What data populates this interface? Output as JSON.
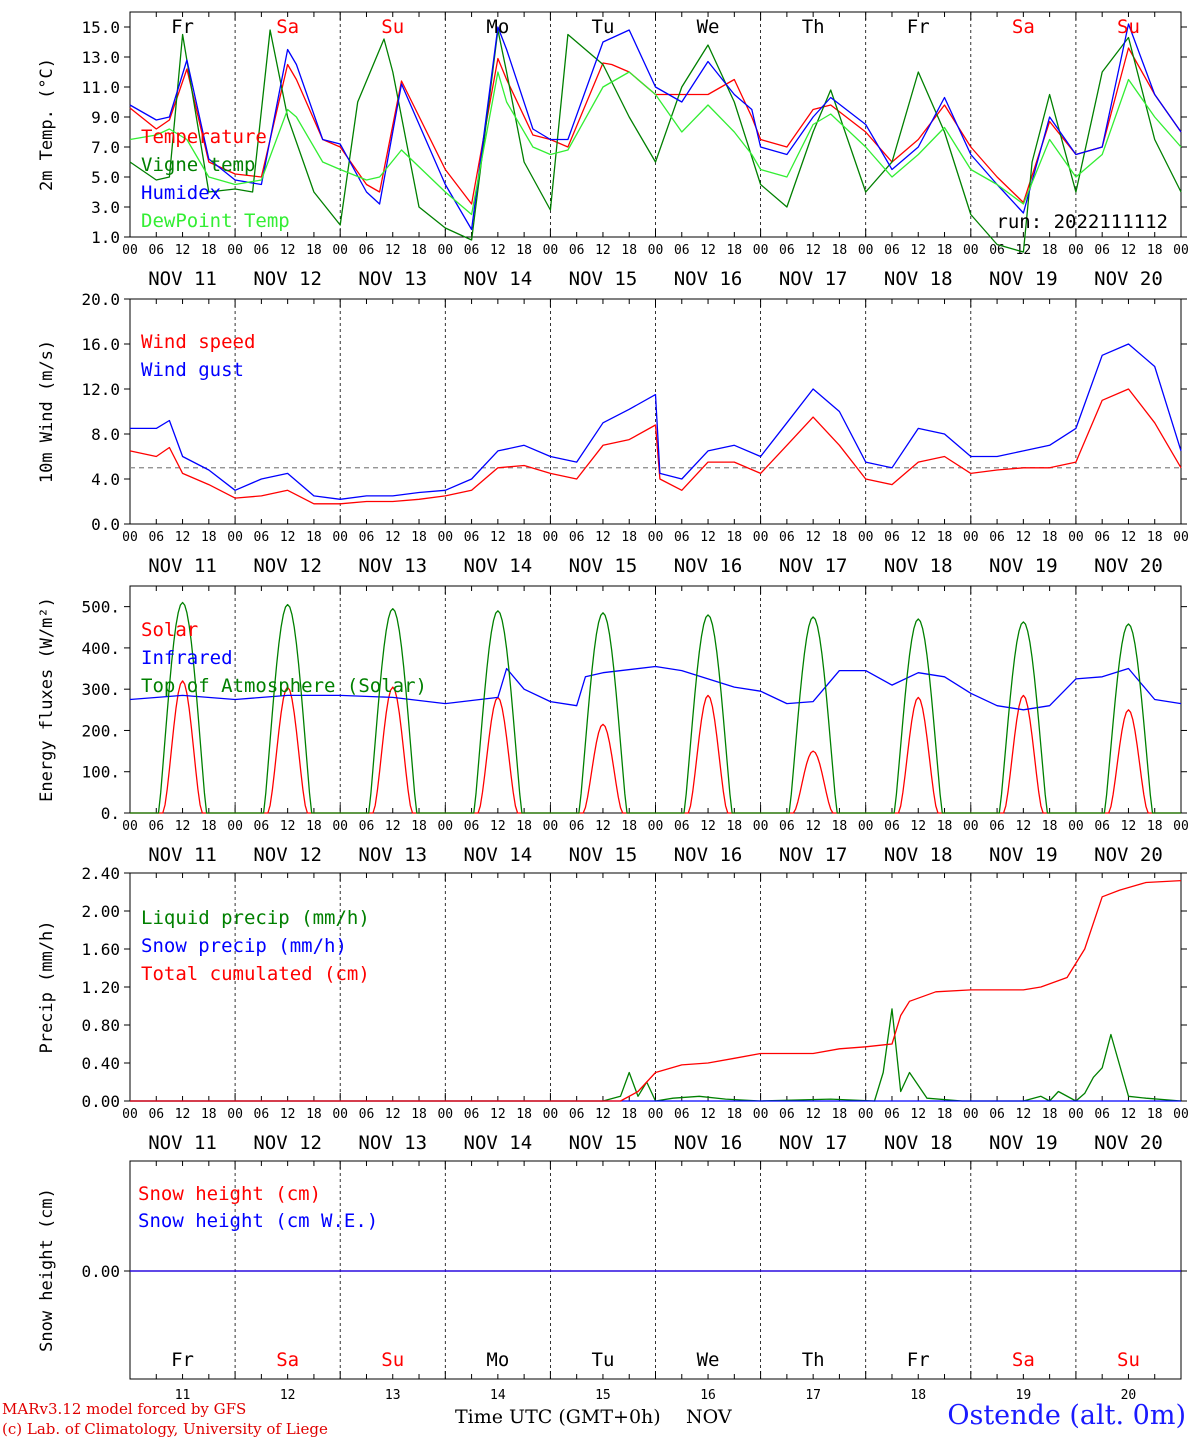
{
  "colors": {
    "temperature": "#ff0000",
    "vigne": "#008000",
    "humidex": "#0000ff",
    "dewpoint": "#33ee33",
    "wind_speed": "#ff0000",
    "wind_gust": "#0000ff",
    "solar": "#ff0000",
    "infrared": "#0000ff",
    "toa": "#008000",
    "liquid": "#008000",
    "snow_precip": "#0000ff",
    "cumulated": "#ff0000",
    "snow_h": "#ff0000",
    "snow_we": "#0000ff",
    "weekday": "#000000",
    "weekend": "#ff0000"
  },
  "days": [
    {
      "abbr": "Fr",
      "date": "NOV 11",
      "num": "11",
      "weekend": false
    },
    {
      "abbr": "Sa",
      "date": "NOV 12",
      "num": "12",
      "weekend": true
    },
    {
      "abbr": "Su",
      "date": "NOV 13",
      "num": "13",
      "weekend": true
    },
    {
      "abbr": "Mo",
      "date": "NOV 14",
      "num": "14",
      "weekend": false
    },
    {
      "abbr": "Tu",
      "date": "NOV 15",
      "num": "15",
      "weekend": false
    },
    {
      "abbr": "We",
      "date": "NOV 16",
      "num": "16",
      "weekend": false
    },
    {
      "abbr": "Th",
      "date": "NOV 17",
      "num": "17",
      "weekend": false
    },
    {
      "abbr": "Fr",
      "date": "NOV 18",
      "num": "18",
      "weekend": false
    },
    {
      "abbr": "Sa",
      "date": "NOV 19",
      "num": "19",
      "weekend": true
    },
    {
      "abbr": "Su",
      "date": "NOV 20",
      "num": "20",
      "weekend": true
    }
  ],
  "hour_ticks": [
    "00",
    "06",
    "12",
    "18"
  ],
  "hour_tick_last": "00",
  "run_label": "run: 2022111112",
  "footer": {
    "credit_line1": "MARv3.12 model forced by GFS",
    "credit_line2": "(c) Lab. of Climatology, University of Liege",
    "x_title": "Time UTC (GMT+0h)",
    "x_month": "NOV",
    "station": "Ostende (alt. 0m)"
  },
  "chart_data": [
    {
      "type": "line",
      "ylabel": "2m Temp. (°C)",
      "ylim": [
        1,
        16
      ],
      "yticks": [
        "1.0",
        "3.0",
        "5.0",
        "7.0",
        "9.0",
        "11.0",
        "13.0",
        "15.0"
      ],
      "yticks_values": [
        1,
        3,
        5,
        7,
        9,
        11,
        13,
        15
      ],
      "x_unit": "hours since NOV 11 00 UTC",
      "series": [
        {
          "name": "Temperature",
          "color_key": "temperature",
          "x": [
            0,
            6,
            9,
            13,
            18,
            24,
            30,
            36,
            38,
            44,
            48,
            54,
            57,
            62,
            72,
            78,
            84,
            86,
            92,
            96,
            100,
            108,
            110,
            114,
            120,
            132,
            138,
            142,
            144,
            150,
            156,
            160,
            168,
            174,
            180,
            186,
            192,
            198,
            204,
            210,
            216,
            222,
            228,
            234,
            240
          ],
          "y": [
            9.6,
            8.2,
            8.8,
            12.2,
            6.0,
            5.2,
            5.0,
            12.5,
            11.5,
            7.5,
            7.0,
            4.5,
            4.0,
            11.4,
            5.5,
            3.2,
            12.9,
            11.5,
            7.8,
            7.5,
            7.0,
            12.6,
            12.5,
            12.0,
            10.5,
            10.5,
            11.5,
            9.0,
            7.5,
            7.0,
            9.5,
            9.8,
            8.0,
            6.0,
            7.5,
            9.8,
            7.0,
            5.0,
            3.3,
            8.7,
            6.5,
            7.0,
            13.6,
            10.5,
            8.0
          ]
        },
        {
          "name": "Vigne temp",
          "color_key": "vigne",
          "x": [
            0,
            6,
            9,
            12,
            18,
            24,
            28,
            32,
            36,
            42,
            48,
            52,
            58,
            60,
            66,
            72,
            78,
            84,
            86,
            90,
            96,
            100,
            108,
            114,
            120,
            126,
            132,
            138,
            144,
            150,
            156,
            160,
            168,
            174,
            180,
            186,
            192,
            198,
            204,
            206,
            210,
            216,
            222,
            228,
            234,
            240
          ],
          "y": [
            6.0,
            4.8,
            5.0,
            14.5,
            4.0,
            4.2,
            4.0,
            14.8,
            9.0,
            4.0,
            1.8,
            10.0,
            14.2,
            12.0,
            3.0,
            1.6,
            0.8,
            14.8,
            12.0,
            6.0,
            2.8,
            14.5,
            12.5,
            9.0,
            6.0,
            11.0,
            13.8,
            10.0,
            4.5,
            3.0,
            8.0,
            10.8,
            4.0,
            6.0,
            12.0,
            8.0,
            2.5,
            0.5,
            0.0,
            6.0,
            10.5,
            4.0,
            12.0,
            14.3,
            7.5,
            4.0
          ]
        },
        {
          "name": "Humidex",
          "color_key": "humidex",
          "x": [
            0,
            6,
            9,
            13,
            18,
            24,
            30,
            36,
            38,
            44,
            48,
            54,
            57,
            62,
            72,
            78,
            84,
            86,
            92,
            96,
            100,
            108,
            114,
            120,
            126,
            132,
            138,
            142,
            144,
            150,
            156,
            160,
            168,
            174,
            180,
            186,
            192,
            198,
            204,
            210,
            216,
            222,
            228,
            234,
            240
          ],
          "y": [
            9.8,
            8.8,
            9.0,
            12.8,
            6.2,
            4.8,
            4.5,
            13.5,
            12.5,
            7.5,
            7.2,
            4.0,
            3.2,
            11.2,
            4.5,
            1.5,
            15.0,
            13.5,
            8.2,
            7.5,
            7.5,
            14.0,
            14.8,
            11.0,
            10.0,
            12.7,
            10.5,
            9.5,
            7.0,
            6.5,
            9.0,
            10.3,
            8.5,
            5.5,
            7.0,
            10.3,
            6.5,
            4.5,
            2.6,
            9.0,
            6.5,
            7.0,
            15.2,
            10.5,
            8.0
          ]
        },
        {
          "name": "DewPoint Temp",
          "color_key": "dewpoint",
          "x": [
            0,
            6,
            9,
            13,
            18,
            24,
            30,
            36,
            38,
            44,
            48,
            54,
            57,
            62,
            72,
            78,
            84,
            86,
            92,
            96,
            100,
            108,
            114,
            120,
            126,
            132,
            138,
            142,
            144,
            150,
            156,
            160,
            168,
            174,
            180,
            186,
            192,
            198,
            204,
            210,
            216,
            222,
            228,
            234,
            240
          ],
          "y": [
            7.5,
            7.8,
            8.2,
            7.5,
            5.0,
            4.5,
            4.8,
            9.5,
            9.0,
            6.0,
            5.5,
            4.8,
            5.0,
            6.8,
            4.0,
            2.5,
            12.0,
            10.0,
            7.0,
            6.5,
            6.8,
            11.0,
            12.0,
            10.5,
            8.0,
            9.8,
            8.0,
            6.5,
            5.5,
            5.0,
            8.5,
            9.2,
            7.0,
            5.0,
            6.5,
            8.3,
            5.5,
            4.5,
            3.2,
            7.5,
            5.0,
            6.5,
            11.5,
            9.0,
            7.0
          ]
        }
      ],
      "legend": [
        "Temperature",
        "Vigne temp",
        "Humidex",
        "DewPoint Temp"
      ]
    },
    {
      "type": "line",
      "ylabel": "10m Wind (m/s)",
      "ylim": [
        0,
        20
      ],
      "yticks": [
        "0.0",
        "4.0",
        "8.0",
        "12.0",
        "16.0",
        "20.0"
      ],
      "yticks_values": [
        0,
        4,
        8,
        12,
        16,
        20
      ],
      "reference_line": 5,
      "series": [
        {
          "name": "Wind speed",
          "color_key": "wind_speed",
          "x": [
            0,
            6,
            9,
            12,
            18,
            24,
            30,
            36,
            42,
            48,
            54,
            60,
            66,
            72,
            78,
            84,
            90,
            96,
            102,
            108,
            114,
            120,
            121,
            126,
            132,
            138,
            144,
            150,
            156,
            162,
            168,
            174,
            180,
            186,
            192,
            198,
            204,
            210,
            216,
            222,
            228,
            234,
            240
          ],
          "y": [
            6.5,
            6.0,
            6.8,
            4.5,
            3.5,
            2.3,
            2.5,
            3.0,
            1.8,
            1.8,
            2.0,
            2.0,
            2.2,
            2.5,
            3.0,
            5.0,
            5.2,
            4.5,
            4.0,
            7.0,
            7.5,
            8.8,
            4.0,
            3.0,
            5.5,
            5.5,
            4.5,
            7.0,
            9.5,
            7.0,
            4.0,
            3.5,
            5.5,
            6.0,
            4.5,
            4.8,
            5.0,
            5.0,
            5.5,
            11.0,
            12.0,
            9.0,
            5.0
          ]
        },
        {
          "name": "Wind gust",
          "color_key": "wind_gust",
          "x": [
            0,
            6,
            9,
            12,
            18,
            24,
            30,
            36,
            42,
            48,
            54,
            60,
            66,
            72,
            78,
            84,
            90,
            96,
            102,
            108,
            114,
            120,
            121,
            126,
            132,
            138,
            144,
            150,
            156,
            162,
            168,
            174,
            180,
            186,
            192,
            198,
            204,
            210,
            216,
            222,
            228,
            234,
            240
          ],
          "y": [
            8.5,
            8.5,
            9.2,
            6.0,
            4.8,
            3.0,
            4.0,
            4.5,
            2.5,
            2.2,
            2.5,
            2.5,
            2.8,
            3.0,
            4.0,
            6.5,
            7.0,
            6.0,
            5.5,
            9.0,
            10.2,
            11.5,
            4.5,
            4.0,
            6.5,
            7.0,
            6.0,
            9.0,
            12.0,
            10.0,
            5.5,
            5.0,
            8.5,
            8.0,
            6.0,
            6.0,
            6.5,
            7.0,
            8.5,
            15.0,
            16.0,
            14.0,
            6.5
          ]
        }
      ],
      "legend": [
        "Wind speed",
        "Wind gust"
      ]
    },
    {
      "type": "line",
      "ylabel": "Energy fluxes (W/m²)",
      "ylim": [
        0,
        550
      ],
      "yticks": [
        "0.",
        "100.",
        "200.",
        "300.",
        "400.",
        "500."
      ],
      "yticks_values": [
        0,
        100,
        200,
        300,
        400,
        500
      ],
      "series": [
        {
          "name": "Solar",
          "color_key": "solar",
          "peaks": [
            320,
            305,
            305,
            280,
            215,
            285,
            150,
            280,
            285,
            250
          ]
        },
        {
          "name": "Infrared",
          "color_key": "infrared",
          "x": [
            0,
            12,
            24,
            36,
            48,
            60,
            72,
            84,
            86,
            90,
            96,
            102,
            104,
            108,
            120,
            126,
            132,
            138,
            144,
            150,
            156,
            162,
            168,
            174,
            180,
            186,
            192,
            198,
            204,
            210,
            216,
            222,
            228,
            234,
            240
          ],
          "y": [
            275,
            285,
            275,
            285,
            285,
            280,
            265,
            280,
            350,
            300,
            270,
            260,
            330,
            340,
            355,
            345,
            325,
            305,
            295,
            265,
            270,
            345,
            345,
            310,
            340,
            330,
            290,
            260,
            250,
            260,
            325,
            330,
            350,
            275,
            265
          ]
        },
        {
          "name": "Top of Atmosphere (Solar)",
          "color_key": "toa",
          "peaks": [
            510,
            505,
            495,
            490,
            485,
            480,
            475,
            470,
            463,
            458
          ]
        }
      ],
      "legend": [
        "Solar",
        "Infrared",
        "Top of Atmosphere (Solar)"
      ]
    },
    {
      "type": "line",
      "ylabel": "Precip (mm/h)",
      "ylim": [
        0,
        2.4
      ],
      "yticks": [
        "0.00",
        "0.40",
        "0.80",
        "1.20",
        "1.60",
        "2.00",
        "2.40"
      ],
      "yticks_values": [
        0,
        0.4,
        0.8,
        1.2,
        1.6,
        2.0,
        2.4
      ],
      "series": [
        {
          "name": "Liquid precip (mm/h)",
          "color_key": "liquid",
          "x": [
            0,
            108,
            112,
            114,
            116,
            118,
            120,
            124,
            130,
            136,
            144,
            160,
            170,
            172,
            174,
            176,
            178,
            182,
            190,
            200,
            204,
            208,
            210,
            212,
            216,
            218,
            220,
            222,
            224,
            228,
            232,
            240
          ],
          "y": [
            0,
            0,
            0.05,
            0.3,
            0.05,
            0.2,
            0.0,
            0.03,
            0.05,
            0.02,
            0,
            0.02,
            0.0,
            0.3,
            0.97,
            0.1,
            0.3,
            0.03,
            0.0,
            0.0,
            0.0,
            0.05,
            0.0,
            0.1,
            0.0,
            0.08,
            0.25,
            0.35,
            0.7,
            0.05,
            0.03,
            0.0
          ]
        },
        {
          "name": "Snow precip (mm/h)",
          "color_key": "snow_precip",
          "x": [
            0,
            240
          ],
          "y": [
            0,
            0
          ]
        },
        {
          "name": "Total cumulated (cm)",
          "color_key": "cumulated",
          "x": [
            0,
            112,
            116,
            120,
            126,
            132,
            138,
            144,
            150,
            156,
            162,
            168,
            174,
            176,
            178,
            184,
            192,
            204,
            208,
            214,
            218,
            222,
            226,
            232,
            240
          ],
          "y": [
            0,
            0,
            0.1,
            0.3,
            0.38,
            0.4,
            0.45,
            0.5,
            0.5,
            0.5,
            0.55,
            0.57,
            0.6,
            0.9,
            1.05,
            1.15,
            1.17,
            1.17,
            1.2,
            1.3,
            1.6,
            2.15,
            2.22,
            2.3,
            2.32
          ]
        }
      ],
      "legend": [
        "Liquid precip (mm/h)",
        "Snow precip (mm/h)",
        "Total cumulated (cm)"
      ]
    },
    {
      "type": "line",
      "ylabel": "Snow height (cm)",
      "yticks": [
        "0.00"
      ],
      "series": [
        {
          "name": "Snow height (cm)",
          "color_key": "snow_h",
          "x": [
            0,
            240
          ],
          "y": [
            0,
            0
          ]
        },
        {
          "name": "Snow height (cm W.E.)",
          "color_key": "snow_we",
          "x": [
            0,
            240
          ],
          "y": [
            0,
            0
          ]
        }
      ],
      "legend": [
        "Snow height (cm)",
        "Snow height (cm W.E.)"
      ]
    }
  ]
}
